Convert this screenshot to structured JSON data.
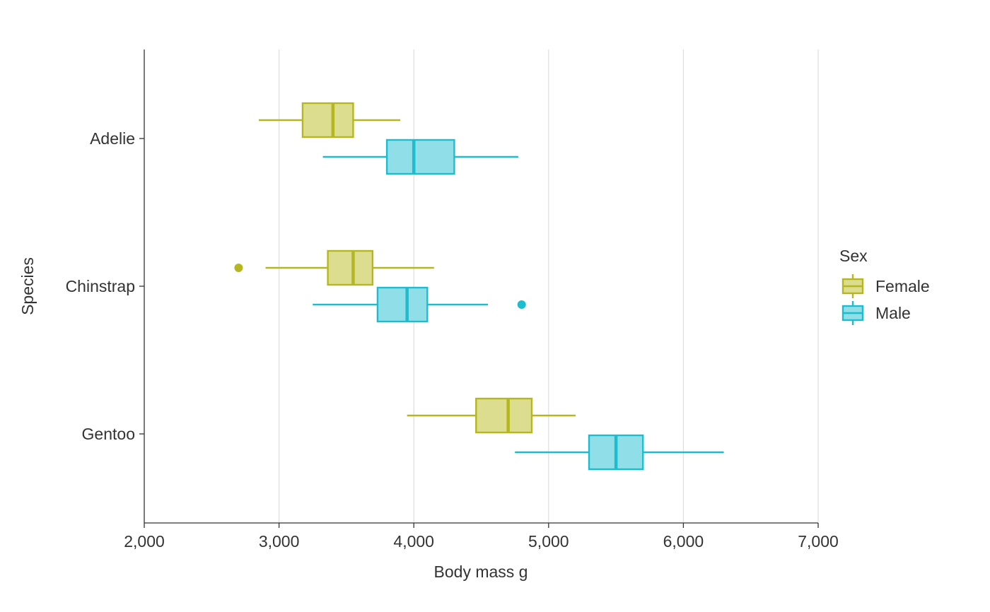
{
  "chart_data": {
    "type": "boxplot",
    "orientation": "horizontal",
    "xlabel": "Body mass g",
    "ylabel": "Species",
    "xlim": [
      2000,
      7000
    ],
    "x_ticks": [
      2000,
      3000,
      4000,
      5000,
      6000,
      7000
    ],
    "x_tick_labels": [
      "2,000",
      "3,000",
      "4,000",
      "5,000",
      "6,000",
      "7,000"
    ],
    "categories": [
      "Adelie",
      "Chinstrap",
      "Gentoo"
    ],
    "grid": "vertical major gridlines",
    "legend": {
      "title": "Sex",
      "position": "right"
    },
    "series": [
      {
        "name": "Female",
        "color": "#b5b722",
        "fill": "#dcdd8f",
        "boxes": [
          {
            "category": "Adelie",
            "whisker_low": 2850,
            "q1": 3175,
            "median": 3400,
            "q3": 3550,
            "whisker_high": 3900,
            "outliers": []
          },
          {
            "category": "Chinstrap",
            "whisker_low": 2900,
            "q1": 3362,
            "median": 3550,
            "q3": 3694,
            "whisker_high": 4150,
            "outliers": [
              2700
            ]
          },
          {
            "category": "Gentoo",
            "whisker_low": 3950,
            "q1": 4462,
            "median": 4700,
            "q3": 4875,
            "whisker_high": 5200,
            "outliers": []
          }
        ]
      },
      {
        "name": "Male",
        "color": "#1dbdd0",
        "fill": "#8fdee8",
        "boxes": [
          {
            "category": "Adelie",
            "whisker_low": 3325,
            "q1": 3800,
            "median": 4000,
            "q3": 4300,
            "whisker_high": 4775,
            "outliers": []
          },
          {
            "category": "Chinstrap",
            "whisker_low": 3250,
            "q1": 3731,
            "median": 3950,
            "q3": 4100,
            "whisker_high": 4550,
            "outliers": [
              4800
            ]
          },
          {
            "category": "Gentoo",
            "whisker_low": 4750,
            "q1": 5300,
            "median": 5500,
            "q3": 5700,
            "whisker_high": 6300,
            "outliers": []
          }
        ]
      }
    ]
  }
}
